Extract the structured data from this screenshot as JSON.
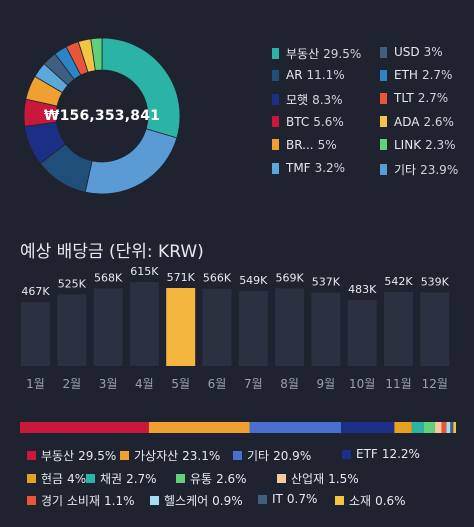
{
  "chart_data": [
    {
      "type": "pie",
      "donut": true,
      "total_label": "₩156,353,841",
      "slices": [
        {
          "name": "부동산",
          "pct": "29.5%",
          "value": 29.5,
          "color": "#2bb3a6"
        },
        {
          "name": "기타",
          "pct": "23.9%",
          "value": 23.9,
          "color": "#5b9bd5"
        },
        {
          "name": "AR",
          "pct": "11.1%",
          "value": 11.1,
          "color": "#1f4e79"
        },
        {
          "name": "모햇",
          "pct": "8.3%",
          "value": 8.3,
          "color": "#1c2f86"
        },
        {
          "name": "BTC",
          "pct": "5.6%",
          "value": 5.6,
          "color": "#c8193c"
        },
        {
          "name": "BR...",
          "pct": "5%",
          "value": 5.0,
          "color": "#f0a030"
        },
        {
          "name": "TMF",
          "pct": "3.2%",
          "value": 3.2,
          "color": "#5aa9d8"
        },
        {
          "name": "USD",
          "pct": "3%",
          "value": 3.0,
          "color": "#3e5f7d"
        },
        {
          "name": "ETH",
          "pct": "2.7%",
          "value": 2.7,
          "color": "#2a84c6"
        },
        {
          "name": "TLT",
          "pct": "2.7%",
          "value": 2.7,
          "color": "#e8553a"
        },
        {
          "name": "ADA",
          "pct": "2.6%",
          "value": 2.6,
          "color": "#f4c542"
        },
        {
          "name": "LINK",
          "pct": "2.3%",
          "value": 2.3,
          "color": "#62d07a"
        }
      ],
      "legend_left": [
        "부동산",
        "AR",
        "모햇",
        "BTC",
        "BR...",
        "TMF"
      ],
      "legend_right": [
        "USD",
        "ETH",
        "TLT",
        "ADA",
        "LINK",
        "기타"
      ]
    },
    {
      "type": "bar",
      "title": "예상 배당금 (단위: KRW)",
      "categories": [
        "1월",
        "2월",
        "3월",
        "4월",
        "5월",
        "6월",
        "7월",
        "8월",
        "9월",
        "10월",
        "11월",
        "12월"
      ],
      "value_labels": [
        "467K",
        "525K",
        "568K",
        "615K",
        "571K",
        "566K",
        "549K",
        "569K",
        "537K",
        "483K",
        "542K",
        "539K"
      ],
      "values": [
        467,
        525,
        568,
        615,
        571,
        566,
        549,
        569,
        537,
        483,
        542,
        539
      ],
      "highlight_index": 4,
      "bar_color": "#2b3140",
      "highlight_color": "#f4b63f"
    },
    {
      "type": "bar",
      "stacked": true,
      "horizontal": true,
      "segments": [
        {
          "name": "부동산",
          "pct": "29.5%",
          "value": 29.5,
          "color": "#c8193c"
        },
        {
          "name": "가상자산",
          "pct": "23.1%",
          "value": 23.1,
          "color": "#f0a030"
        },
        {
          "name": "기타",
          "pct": "20.9%",
          "value": 20.9,
          "color": "#4a6fd1"
        },
        {
          "name": "ETF",
          "pct": "12.2%",
          "value": 12.2,
          "color": "#1c2f86"
        },
        {
          "name": "현금",
          "pct": "4%",
          "value": 4.0,
          "color": "#e8a020"
        },
        {
          "name": "채권",
          "pct": "2.7%",
          "value": 2.7,
          "color": "#2bb3a6"
        },
        {
          "name": "유통",
          "pct": "2.6%",
          "value": 2.6,
          "color": "#62d07a"
        },
        {
          "name": "산업재",
          "pct": "1.5%",
          "value": 1.5,
          "color": "#f7c9a0"
        },
        {
          "name": "경기 소비재",
          "pct": "1.1%",
          "value": 1.1,
          "color": "#e8553a"
        },
        {
          "name": "헬스케어",
          "pct": "0.9%",
          "value": 0.9,
          "color": "#a8dcf0"
        },
        {
          "name": "IT",
          "pct": "0.7%",
          "value": 0.7,
          "color": "#3e5f7d"
        },
        {
          "name": "소재",
          "pct": "0.6%",
          "value": 0.6,
          "color": "#f4c542"
        }
      ]
    }
  ]
}
